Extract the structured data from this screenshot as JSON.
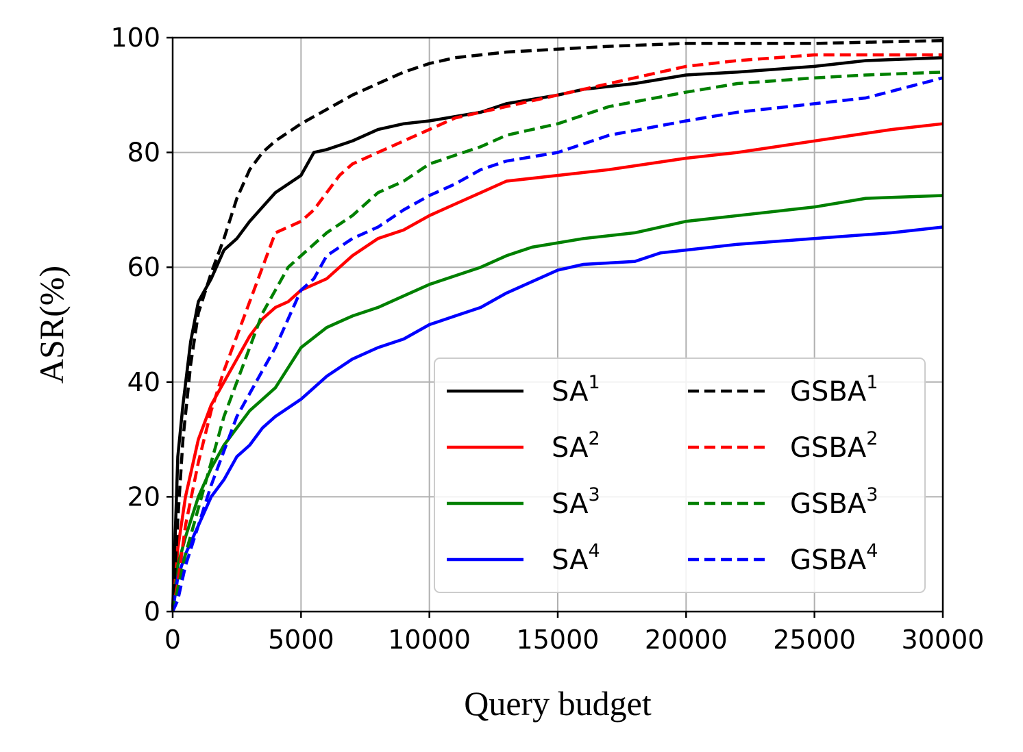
{
  "chart_data": {
    "type": "line",
    "title": "",
    "xlabel": "Query budget",
    "ylabel": "ASR(%)",
    "xlim": [
      0,
      30000
    ],
    "ylim": [
      0,
      100
    ],
    "xticks": [
      0,
      5000,
      10000,
      15000,
      20000,
      25000,
      30000
    ],
    "yticks": [
      0,
      20,
      40,
      60,
      80,
      100
    ],
    "grid": true,
    "legend_position": "lower-right",
    "legend_columns": 2,
    "series": [
      {
        "name": "SA",
        "sup": "1",
        "color": "#000000",
        "style": "solid",
        "x": [
          0,
          200,
          400,
          700,
          1000,
          1500,
          2000,
          2500,
          3000,
          4000,
          5000,
          5500,
          6000,
          7000,
          8000,
          9000,
          10000,
          12000,
          13000,
          15000,
          16000,
          18000,
          20000,
          22000,
          25000,
          27000,
          30000
        ],
        "y": [
          0,
          27,
          36,
          47,
          54,
          58,
          63,
          65,
          68,
          73,
          76,
          80,
          80.5,
          82,
          84,
          85,
          85.5,
          87,
          88.5,
          90,
          91,
          92,
          93.5,
          94,
          95,
          96,
          96.5
        ]
      },
      {
        "name": "SA",
        "sup": "2",
        "color": "#ff0000",
        "style": "solid",
        "x": [
          0,
          200,
          500,
          1000,
          1500,
          2000,
          2500,
          3000,
          3500,
          4000,
          4500,
          5000,
          6000,
          7000,
          8000,
          9000,
          10000,
          11000,
          12000,
          13000,
          15000,
          17000,
          20000,
          22000,
          25000,
          28000,
          30000
        ],
        "y": [
          0,
          11,
          20,
          30,
          36,
          40,
          44,
          48,
          51,
          53,
          54,
          56,
          58,
          62,
          65,
          66.5,
          69,
          71,
          73,
          75,
          76,
          77,
          79,
          80,
          82,
          84,
          85
        ]
      },
      {
        "name": "SA",
        "sup": "3",
        "color": "#008000",
        "style": "solid",
        "x": [
          0,
          200,
          500,
          1000,
          1500,
          2000,
          3000,
          4000,
          5000,
          6000,
          7000,
          8000,
          9000,
          10000,
          11000,
          12000,
          13000,
          14000,
          16000,
          18000,
          20000,
          22000,
          25000,
          27000,
          30000
        ],
        "y": [
          0,
          8,
          13,
          20,
          25,
          29,
          35,
          39,
          46,
          49.5,
          51.5,
          53,
          55,
          57,
          58.5,
          60,
          62,
          63.5,
          65,
          66,
          68,
          69,
          70.5,
          72,
          72.5
        ]
      },
      {
        "name": "SA",
        "sup": "4",
        "color": "#0000ff",
        "style": "solid",
        "x": [
          0,
          200,
          500,
          1000,
          1500,
          2000,
          2500,
          3000,
          3500,
          4000,
          5000,
          5500,
          6000,
          7000,
          8000,
          9000,
          10000,
          11000,
          12000,
          13000,
          14000,
          15000,
          16000,
          18000,
          19000,
          20000,
          22000,
          25000,
          28000,
          30000
        ],
        "y": [
          0,
          6,
          10,
          15,
          20,
          23,
          27,
          29,
          32,
          34,
          37,
          39,
          41,
          44,
          46,
          47.5,
          50,
          51.5,
          53,
          55.5,
          57.5,
          59.5,
          60.5,
          61,
          62.5,
          63,
          64,
          65,
          66,
          67
        ]
      },
      {
        "name": "GSBA",
        "sup": "1",
        "color": "#000000",
        "style": "dashed",
        "x": [
          0,
          200,
          400,
          700,
          1000,
          1500,
          2000,
          2500,
          3000,
          3500,
          4000,
          5000,
          6000,
          7000,
          8000,
          9000,
          10000,
          11000,
          13000,
          15000,
          17000,
          20000,
          25000,
          30000
        ],
        "y": [
          0,
          16,
          30,
          43,
          52,
          59,
          65,
          72,
          77,
          80,
          82,
          85,
          87.5,
          90,
          92,
          94,
          95.5,
          96.5,
          97.5,
          98,
          98.5,
          99,
          99,
          99.5
        ]
      },
      {
        "name": "GSBA",
        "sup": "2",
        "color": "#ff0000",
        "style": "dashed",
        "x": [
          0,
          200,
          500,
          1000,
          1500,
          2000,
          2500,
          3000,
          3500,
          4000,
          5000,
          5500,
          6000,
          6500,
          7000,
          8000,
          9000,
          10000,
          11000,
          12000,
          13000,
          15000,
          17000,
          20000,
          22000,
          25000,
          30000
        ],
        "y": [
          0,
          5,
          15,
          26,
          35,
          42,
          48,
          54,
          60,
          66,
          68,
          70,
          73,
          76,
          78,
          80,
          82,
          84,
          86,
          87,
          88,
          90,
          92,
          95,
          96,
          97,
          97
        ]
      },
      {
        "name": "GSBA",
        "sup": "3",
        "color": "#008000",
        "style": "dashed",
        "x": [
          0,
          200,
          500,
          1000,
          1500,
          2000,
          2500,
          3000,
          3500,
          4000,
          4500,
          5000,
          6000,
          7000,
          8000,
          9000,
          10000,
          11000,
          12000,
          13000,
          15000,
          17000,
          20000,
          22000,
          25000,
          27000,
          30000
        ],
        "y": [
          0,
          4,
          10,
          18,
          26,
          34,
          40,
          46,
          52,
          56,
          60,
          62,
          66,
          69,
          73,
          75,
          78,
          79.5,
          81,
          83,
          85,
          88,
          90.5,
          92,
          93,
          93.5,
          94
        ]
      },
      {
        "name": "GSBA",
        "sup": "4",
        "color": "#0000ff",
        "style": "dashed",
        "x": [
          0,
          200,
          500,
          1000,
          1500,
          2000,
          2500,
          3000,
          3500,
          4000,
          4500,
          5000,
          5500,
          6000,
          7000,
          8000,
          9000,
          10000,
          11000,
          12000,
          13000,
          15000,
          17000,
          20000,
          22000,
          25000,
          27000,
          30000
        ],
        "y": [
          0,
          2,
          8,
          15,
          22,
          28,
          34,
          38,
          42,
          46,
          51,
          56,
          58,
          62,
          65,
          67,
          70,
          72.5,
          74.5,
          77,
          78.5,
          80,
          83,
          85.5,
          87,
          88.5,
          89.5,
          93
        ]
      }
    ]
  }
}
